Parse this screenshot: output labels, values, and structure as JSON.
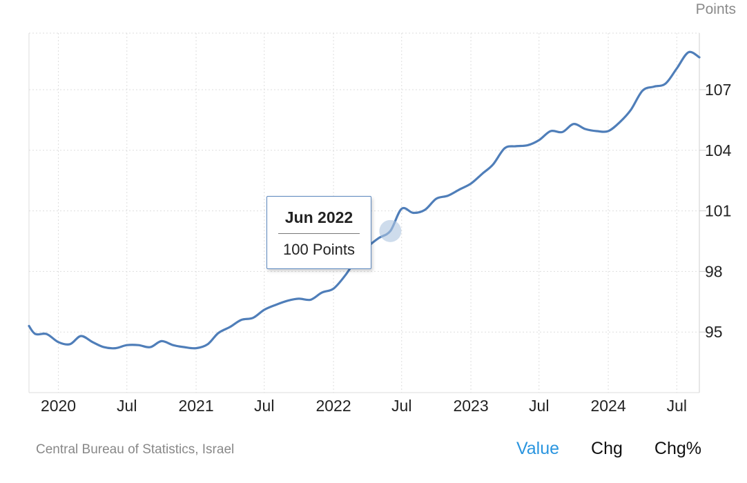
{
  "chart_data": {
    "type": "line",
    "unit_label": "Points",
    "y_ticks": [
      95,
      98,
      101,
      104,
      107
    ],
    "ylim": [
      92,
      109.8
    ],
    "x_ticks": [
      {
        "date": "2020-01-01",
        "label": "2020"
      },
      {
        "date": "2020-07-01",
        "label": "Jul"
      },
      {
        "date": "2021-01-01",
        "label": "2021"
      },
      {
        "date": "2021-07-01",
        "label": "Jul"
      },
      {
        "date": "2022-01-01",
        "label": "2022"
      },
      {
        "date": "2022-07-01",
        "label": "Jul"
      },
      {
        "date": "2023-01-01",
        "label": "2023"
      },
      {
        "date": "2023-07-01",
        "label": "Jul"
      },
      {
        "date": "2024-01-01",
        "label": "2024"
      },
      {
        "date": "2024-07-01",
        "label": "Jul"
      }
    ],
    "xlim": [
      "2019-10-15",
      "2024-08-30"
    ],
    "grid": true,
    "series": [
      {
        "color": "#4f7eb9",
        "points": [
          [
            "2019-10-15",
            95.3
          ],
          [
            "2019-11-01",
            94.9
          ],
          [
            "2019-12-01",
            94.9
          ],
          [
            "2020-01-01",
            94.5
          ],
          [
            "2020-02-01",
            94.4
          ],
          [
            "2020-03-01",
            94.8
          ],
          [
            "2020-04-01",
            94.5
          ],
          [
            "2020-05-01",
            94.25
          ],
          [
            "2020-06-01",
            94.2
          ],
          [
            "2020-07-01",
            94.35
          ],
          [
            "2020-08-01",
            94.35
          ],
          [
            "2020-09-01",
            94.25
          ],
          [
            "2020-10-01",
            94.55
          ],
          [
            "2020-11-01",
            94.35
          ],
          [
            "2020-12-01",
            94.25
          ],
          [
            "2021-01-01",
            94.2
          ],
          [
            "2021-02-01",
            94.4
          ],
          [
            "2021-03-01",
            94.95
          ],
          [
            "2021-04-01",
            95.25
          ],
          [
            "2021-05-01",
            95.6
          ],
          [
            "2021-06-01",
            95.7
          ],
          [
            "2021-07-01",
            96.1
          ],
          [
            "2021-08-01",
            96.35
          ],
          [
            "2021-09-01",
            96.55
          ],
          [
            "2021-10-01",
            96.65
          ],
          [
            "2021-11-01",
            96.6
          ],
          [
            "2021-12-01",
            96.95
          ],
          [
            "2022-01-01",
            97.15
          ],
          [
            "2022-02-01",
            97.8
          ],
          [
            "2022-03-01",
            98.55
          ],
          [
            "2022-04-01",
            99.2
          ],
          [
            "2022-05-01",
            99.65
          ],
          [
            "2022-06-01",
            100.0
          ],
          [
            "2022-07-01",
            101.1
          ],
          [
            "2022-08-01",
            100.9
          ],
          [
            "2022-09-01",
            101.05
          ],
          [
            "2022-10-01",
            101.6
          ],
          [
            "2022-11-01",
            101.75
          ],
          [
            "2022-12-01",
            102.05
          ],
          [
            "2023-01-01",
            102.35
          ],
          [
            "2023-02-01",
            102.85
          ],
          [
            "2023-03-01",
            103.3
          ],
          [
            "2023-04-01",
            104.1
          ],
          [
            "2023-05-01",
            104.2
          ],
          [
            "2023-06-01",
            104.25
          ],
          [
            "2023-07-01",
            104.5
          ],
          [
            "2023-08-01",
            104.95
          ],
          [
            "2023-09-01",
            104.9
          ],
          [
            "2023-10-01",
            105.3
          ],
          [
            "2023-11-01",
            105.05
          ],
          [
            "2023-12-01",
            104.95
          ],
          [
            "2024-01-01",
            104.95
          ],
          [
            "2024-02-01",
            105.4
          ],
          [
            "2024-03-01",
            106.0
          ],
          [
            "2024-04-01",
            106.95
          ],
          [
            "2024-05-01",
            107.15
          ],
          [
            "2024-06-01",
            107.3
          ],
          [
            "2024-07-01",
            108.05
          ],
          [
            "2024-08-01",
            108.85
          ],
          [
            "2024-08-30",
            108.6
          ]
        ]
      }
    ],
    "highlight": {
      "date": "2022-06-01",
      "value": 100.0
    }
  },
  "tooltip": {
    "title": "Jun 2022",
    "value_text": "100 Points"
  },
  "source": "Central Bureau of Statistics, Israel",
  "tabs": [
    {
      "label": "Value",
      "active": true
    },
    {
      "label": "Chg",
      "active": false
    },
    {
      "label": "Chg%",
      "active": false
    }
  ],
  "colors": {
    "line": "#4f7eb9",
    "active_tab": "#2a95df"
  }
}
